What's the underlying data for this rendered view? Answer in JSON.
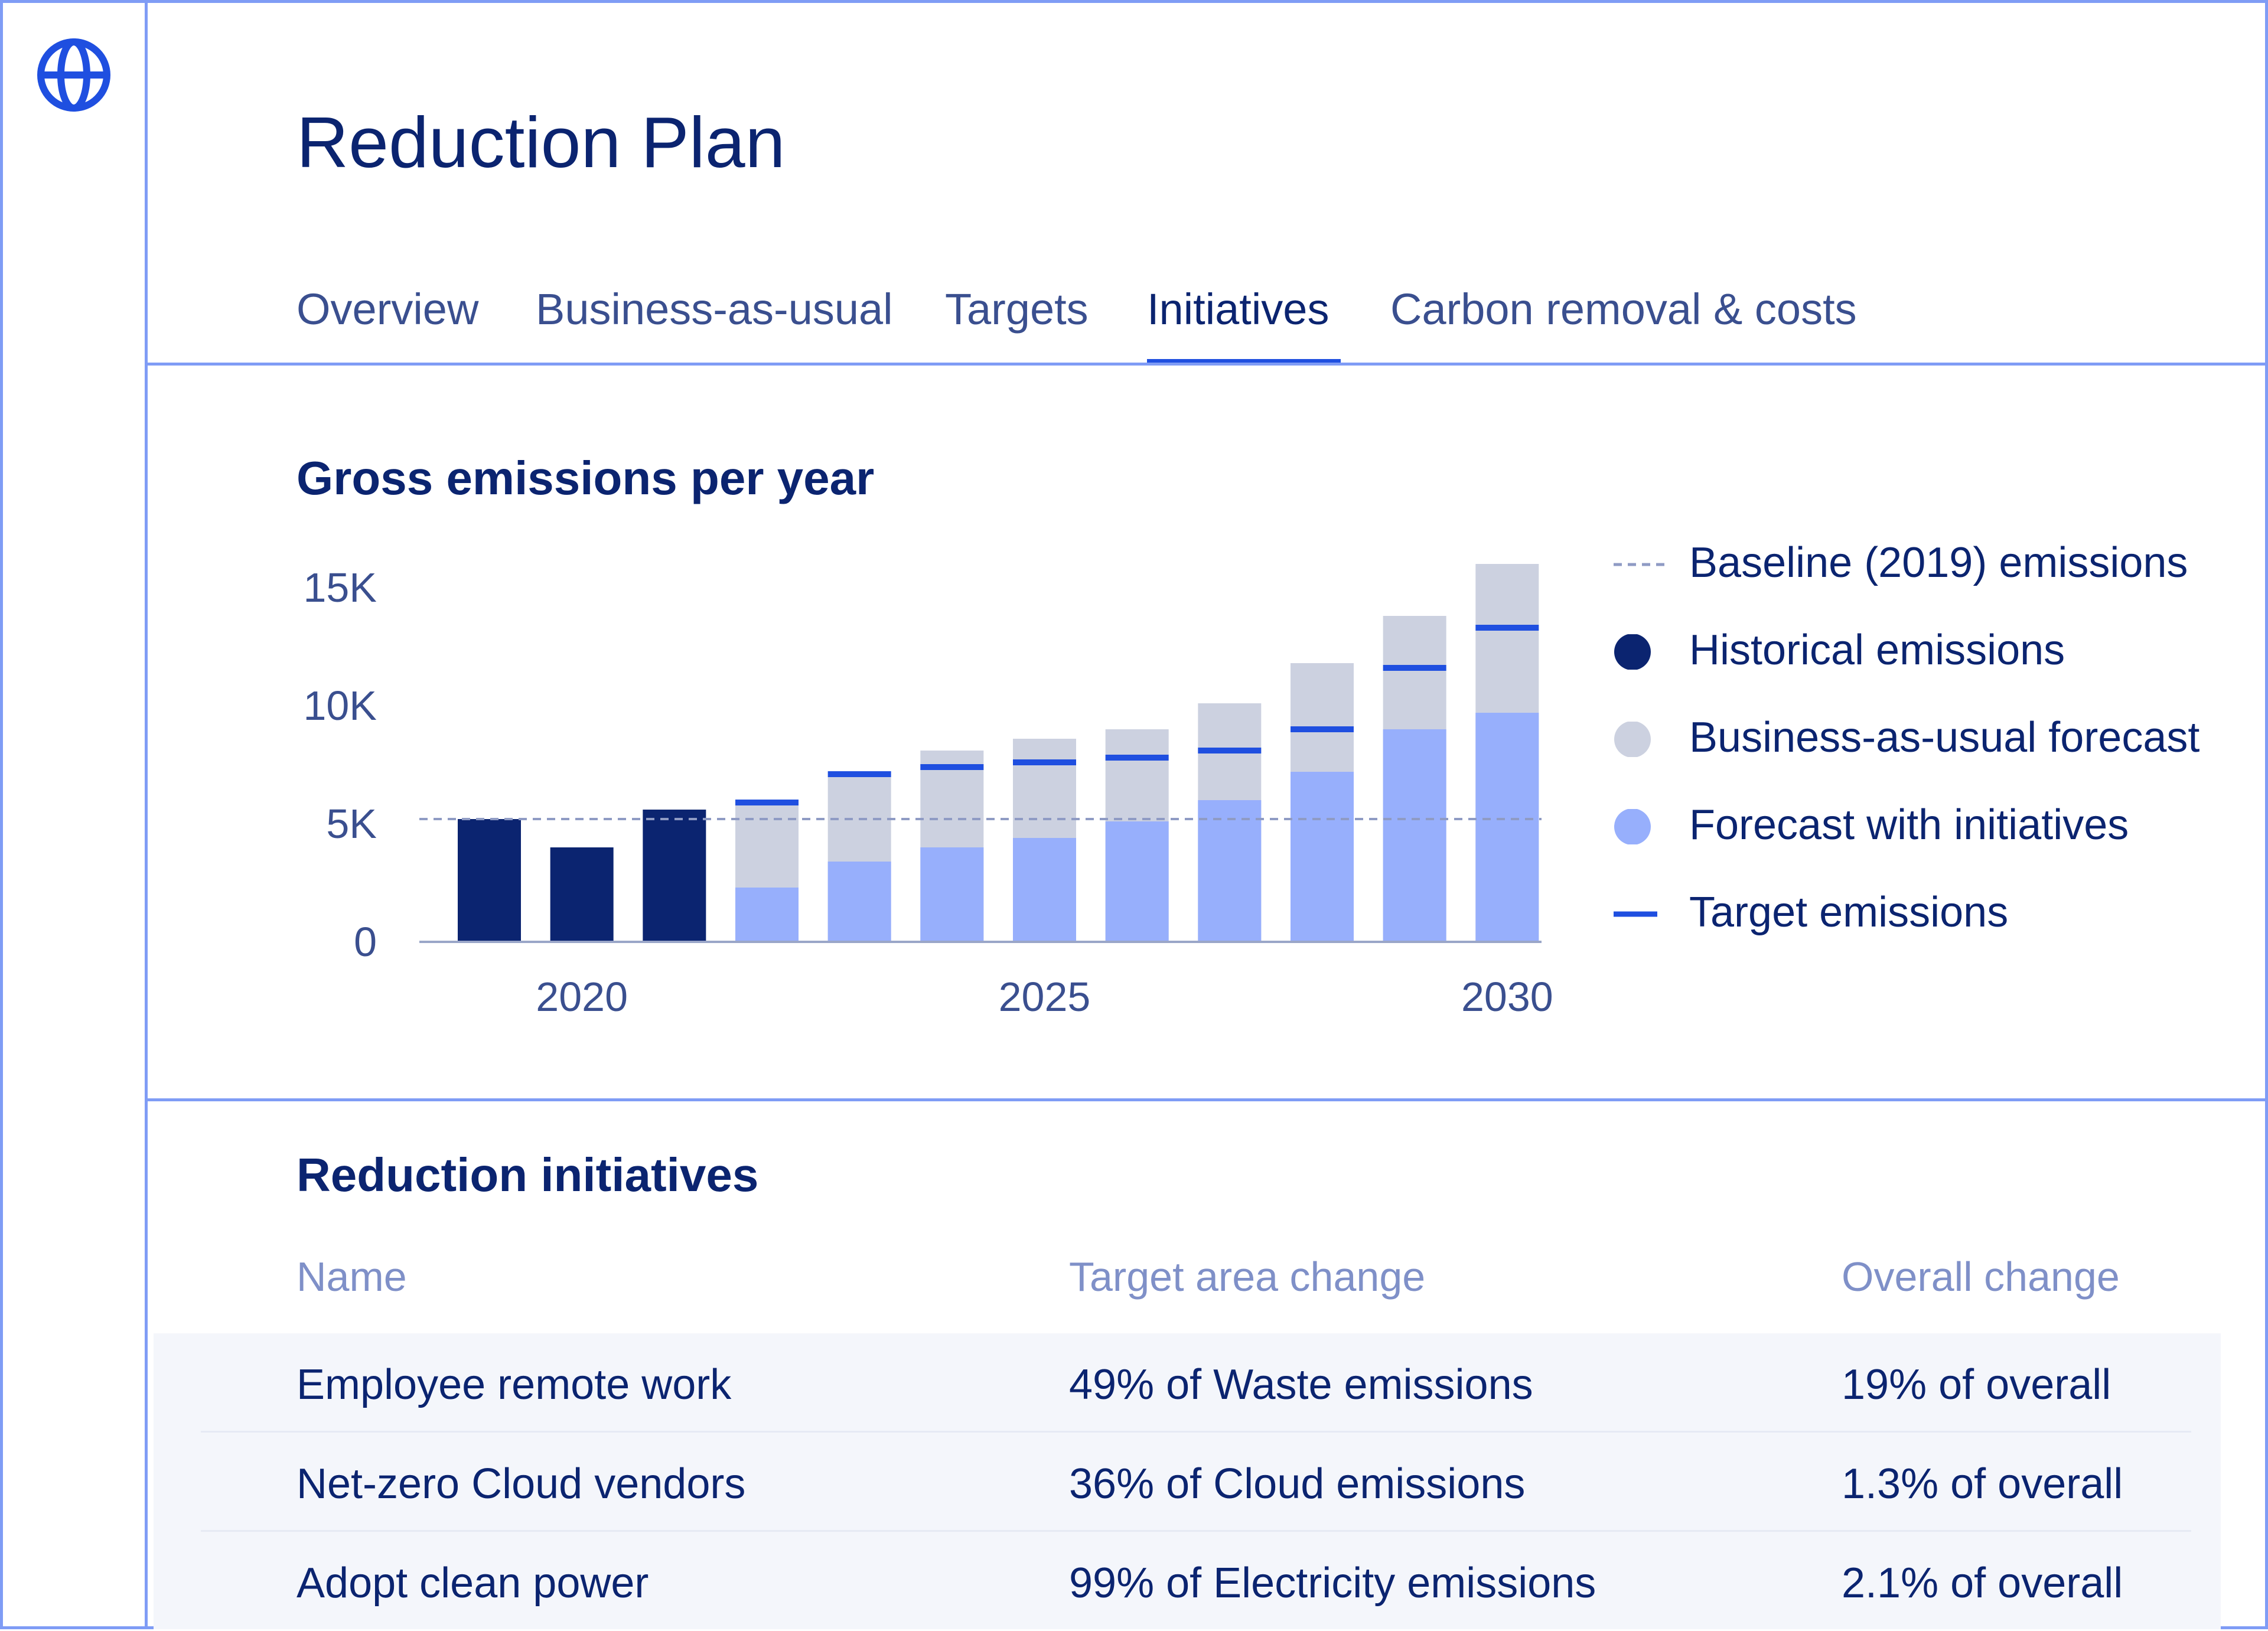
{
  "page": {
    "title": "Reduction Plan",
    "logo_icon": "globe-icon"
  },
  "tabs": [
    {
      "label": "Overview",
      "active": false
    },
    {
      "label": "Business-as-usual",
      "active": false
    },
    {
      "label": "Targets",
      "active": false
    },
    {
      "label": "Initiatives",
      "active": true
    },
    {
      "label": "Carbon removal & costs",
      "active": false
    }
  ],
  "colors": {
    "historical": "#0b2470",
    "bau": "#ccd1e0",
    "initiatives": "#97affc",
    "target": "#1f4fe0",
    "baseline": "#8f9bc4",
    "accent": "#1f4fe0"
  },
  "chart_section": {
    "title": "Gross emissions per year"
  },
  "chart_data": {
    "type": "bar",
    "title": "Gross emissions per year",
    "x": [
      2019,
      2020,
      2021,
      2022,
      2023,
      2024,
      2025,
      2026,
      2027,
      2028,
      2029,
      2030
    ],
    "x_tick_labels": [
      "2020",
      "2025",
      "2030"
    ],
    "x_ticks": [
      2020,
      2025,
      2030
    ],
    "y_tick_labels": [
      "0",
      "5K",
      "10K",
      "15K"
    ],
    "y_ticks": [
      0,
      5000,
      10000,
      15000
    ],
    "ylim": [
      0,
      16000
    ],
    "baseline": 5200,
    "series": [
      {
        "name": "Historical emissions",
        "values": [
          5200,
          4000,
          5600,
          null,
          null,
          null,
          null,
          null,
          null,
          null,
          null,
          null
        ]
      },
      {
        "name": "Business-as-usual forecast",
        "values": [
          null,
          null,
          null,
          5800,
          7000,
          8100,
          8600,
          9000,
          10100,
          11800,
          13800,
          16000
        ]
      },
      {
        "name": "Forecast with initiatives",
        "values": [
          null,
          null,
          null,
          2300,
          3400,
          4000,
          4400,
          5100,
          6000,
          7200,
          9000,
          9700
        ]
      },
      {
        "name": "Target emissions",
        "values": [
          null,
          null,
          null,
          5900,
          7100,
          7400,
          7600,
          7800,
          8100,
          9000,
          11600,
          13300
        ]
      }
    ]
  },
  "legend": [
    {
      "label": "Baseline (2019) emissions",
      "swatch": "dashed-line",
      "icon": "dashed-line-icon"
    },
    {
      "label": "Historical emissions",
      "swatch": "dot",
      "color_key": "historical",
      "icon": "dot-icon"
    },
    {
      "label": "Business-as-usual forecast",
      "swatch": "dot",
      "color_key": "bau",
      "icon": "dot-icon"
    },
    {
      "label": "Forecast with initiatives",
      "swatch": "dot",
      "color_key": "initiatives",
      "icon": "dot-icon"
    },
    {
      "label": "Target emissions",
      "swatch": "line",
      "color_key": "target",
      "icon": "line-icon"
    }
  ],
  "initiatives": {
    "title": "Reduction initiatives",
    "columns": [
      "Name",
      "Target area change",
      "Overall change"
    ],
    "rows": [
      {
        "name": "Employee remote work",
        "target_area_change": "49% of Waste emissions",
        "overall_change": "19% of overall"
      },
      {
        "name": "Net-zero Cloud vendors",
        "target_area_change": "36% of Cloud emissions",
        "overall_change": "1.3% of overall"
      },
      {
        "name": "Adopt clean power",
        "target_area_change": "99% of Electricity emissions",
        "overall_change": "2.1% of overall"
      }
    ]
  }
}
